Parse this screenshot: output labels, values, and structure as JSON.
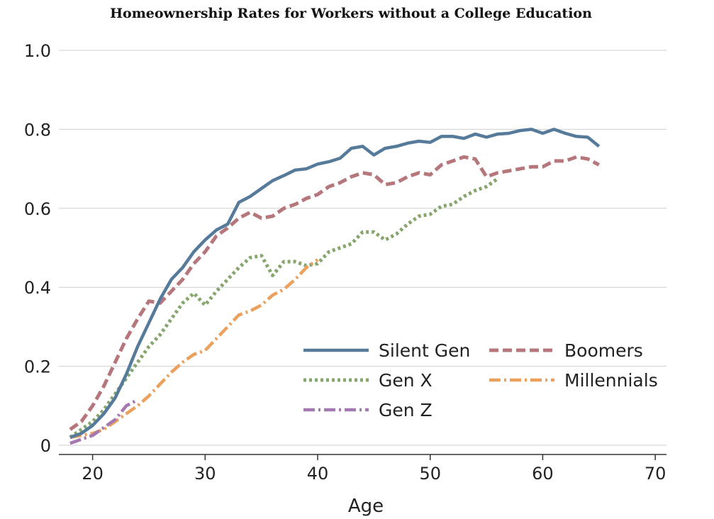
{
  "chart_data": {
    "type": "line",
    "title": "Homeownership Rates for Workers without a College Education",
    "xlabel": "Age",
    "ylabel": "",
    "xlim": [
      17,
      71
    ],
    "ylim": [
      -0.02,
      1.0
    ],
    "xticks": [
      20,
      30,
      40,
      50,
      60,
      70
    ],
    "yticks": [
      0,
      0.2,
      0.4,
      0.6,
      0.8,
      1.0
    ],
    "ytick_labels": [
      "0",
      "0.2",
      "0.4",
      "0.6",
      "0.8",
      "1.0"
    ],
    "grid": "horizontal",
    "legend_position": "bottom-right",
    "series": [
      {
        "name": "Silent Gen",
        "color": "#557a9a",
        "style": "solid",
        "x": [
          18,
          19,
          20,
          21,
          22,
          23,
          24,
          25,
          26,
          27,
          28,
          29,
          30,
          31,
          32,
          33,
          34,
          35,
          36,
          37,
          38,
          39,
          40,
          41,
          42,
          43,
          44,
          45,
          46,
          47,
          48,
          49,
          50,
          51,
          52,
          53,
          54,
          55,
          56,
          57,
          58,
          59,
          60,
          61,
          62,
          63,
          64,
          65
        ],
        "y": [
          0.02,
          0.03,
          0.05,
          0.08,
          0.12,
          0.18,
          0.25,
          0.31,
          0.37,
          0.42,
          0.45,
          0.49,
          0.52,
          0.545,
          0.56,
          0.615,
          0.63,
          0.65,
          0.67,
          0.683,
          0.697,
          0.7,
          0.712,
          0.718,
          0.727,
          0.752,
          0.757,
          0.735,
          0.752,
          0.757,
          0.765,
          0.77,
          0.767,
          0.782,
          0.782,
          0.777,
          0.788,
          0.78,
          0.788,
          0.79,
          0.797,
          0.8,
          0.79,
          0.8,
          0.79,
          0.782,
          0.78,
          0.757
        ]
      },
      {
        "name": "Boomers",
        "color": "#b5777b",
        "style": "dashed",
        "x": [
          18,
          19,
          20,
          21,
          22,
          23,
          24,
          25,
          26,
          27,
          28,
          29,
          30,
          31,
          32,
          33,
          34,
          35,
          36,
          37,
          38,
          39,
          40,
          41,
          42,
          43,
          44,
          45,
          46,
          47,
          48,
          49,
          50,
          51,
          52,
          53,
          54,
          55,
          56,
          57,
          58,
          59,
          60,
          61,
          62,
          63,
          64,
          65
        ],
        "y": [
          0.04,
          0.06,
          0.1,
          0.15,
          0.21,
          0.27,
          0.32,
          0.365,
          0.36,
          0.39,
          0.42,
          0.46,
          0.49,
          0.53,
          0.55,
          0.575,
          0.59,
          0.575,
          0.58,
          0.6,
          0.61,
          0.625,
          0.635,
          0.655,
          0.665,
          0.68,
          0.69,
          0.685,
          0.66,
          0.665,
          0.68,
          0.69,
          0.685,
          0.71,
          0.72,
          0.73,
          0.725,
          0.68,
          0.69,
          0.695,
          0.7,
          0.705,
          0.705,
          0.72,
          0.72,
          0.73,
          0.725,
          0.71
        ]
      },
      {
        "name": "Gen X",
        "color": "#87a66e",
        "style": "dotted",
        "x": [
          18,
          19,
          20,
          21,
          22,
          23,
          24,
          25,
          26,
          27,
          28,
          29,
          30,
          31,
          32,
          33,
          34,
          35,
          36,
          37,
          38,
          39,
          40,
          41,
          42,
          43,
          44,
          45,
          46,
          47,
          48,
          49,
          50,
          51,
          52,
          53,
          54,
          55,
          56
        ],
        "y": [
          0.02,
          0.04,
          0.06,
          0.09,
          0.13,
          0.17,
          0.21,
          0.25,
          0.28,
          0.32,
          0.36,
          0.385,
          0.355,
          0.39,
          0.42,
          0.45,
          0.475,
          0.48,
          0.43,
          0.465,
          0.465,
          0.455,
          0.46,
          0.49,
          0.5,
          0.51,
          0.54,
          0.54,
          0.52,
          0.535,
          0.56,
          0.58,
          0.585,
          0.605,
          0.61,
          0.63,
          0.645,
          0.655,
          0.675
        ]
      },
      {
        "name": "Millennials",
        "color": "#eba15d",
        "style": "dashdot",
        "x": [
          18,
          19,
          20,
          21,
          22,
          23,
          24,
          25,
          26,
          27,
          28,
          29,
          30,
          31,
          32,
          33,
          34,
          35,
          36,
          37,
          38,
          39,
          40
        ],
        "y": [
          0.02,
          0.025,
          0.03,
          0.04,
          0.06,
          0.08,
          0.1,
          0.125,
          0.155,
          0.185,
          0.21,
          0.23,
          0.24,
          0.27,
          0.3,
          0.33,
          0.34,
          0.355,
          0.38,
          0.395,
          0.42,
          0.45,
          0.47
        ]
      },
      {
        "name": "Gen Z",
        "color": "#a478b1",
        "style": "dashdot",
        "x": [
          18,
          19,
          20,
          21,
          22,
          23,
          24
        ],
        "y": [
          0.005,
          0.015,
          0.025,
          0.045,
          0.065,
          0.1,
          0.115
        ]
      }
    ]
  }
}
